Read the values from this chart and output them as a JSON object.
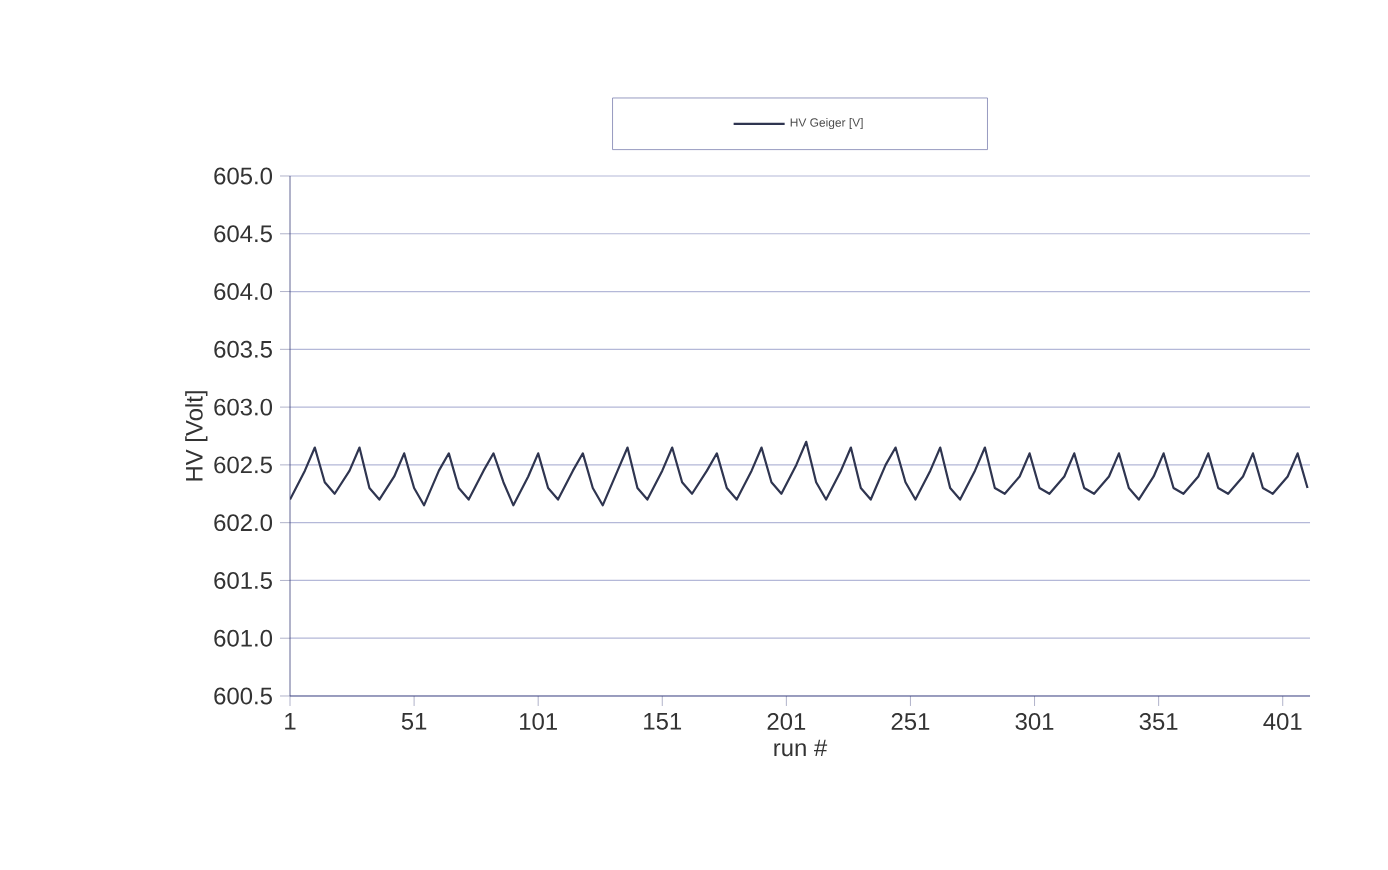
{
  "chart_data": {
    "type": "line",
    "xlabel": "run #",
    "ylabel": "HV [Volt]",
    "xlim": [
      1,
      412
    ],
    "xticks": [
      1,
      51,
      101,
      151,
      201,
      251,
      301,
      351,
      401
    ],
    "ylim": [
      600.5,
      605.0
    ],
    "yticks": [
      {
        "value": 600.5,
        "label": "600.5"
      },
      {
        "value": 601.0,
        "label": "601.0"
      },
      {
        "value": 601.5,
        "label": "601.5"
      },
      {
        "value": 602.0,
        "label": "602.0"
      },
      {
        "value": 602.5,
        "label": "602.5"
      },
      {
        "value": 603.0,
        "label": "603.0"
      },
      {
        "value": 603.5,
        "label": "603.5"
      },
      {
        "value": 604.0,
        "label": "604.0"
      },
      {
        "value": 604.5,
        "label": "604.5"
      },
      {
        "value": 605.0,
        "label": "605.0"
      }
    ],
    "grid": "y",
    "legend": "top",
    "marker": "none",
    "line_style": "solid",
    "series": [
      {
        "name": "HV Geiger [V]",
        "color": "#2f3550",
        "x": [
          1,
          7,
          11,
          15,
          19,
          25,
          29,
          33,
          37,
          43,
          47,
          51,
          55,
          61,
          65,
          69,
          73,
          79,
          83,
          87,
          91,
          97,
          101,
          105,
          109,
          115,
          119,
          123,
          127,
          133,
          137,
          141,
          145,
          151,
          155,
          159,
          163,
          169,
          173,
          177,
          181,
          187,
          191,
          195,
          199,
          205,
          209,
          213,
          217,
          223,
          227,
          231,
          235,
          241,
          245,
          249,
          253,
          259,
          263,
          267,
          271,
          277,
          281,
          285,
          289,
          295,
          299,
          303,
          307,
          313,
          317,
          321,
          325,
          331,
          335,
          339,
          343,
          349,
          353,
          357,
          361,
          367,
          371,
          375,
          379,
          385,
          389,
          393,
          397,
          403,
          407,
          411
        ],
        "values": [
          602.2,
          602.45,
          602.65,
          602.35,
          602.25,
          602.45,
          602.65,
          602.3,
          602.2,
          602.4,
          602.6,
          602.3,
          602.15,
          602.45,
          602.6,
          602.3,
          602.2,
          602.45,
          602.6,
          602.35,
          602.15,
          602.4,
          602.6,
          602.3,
          602.2,
          602.45,
          602.6,
          602.3,
          602.15,
          602.45,
          602.65,
          602.3,
          602.2,
          602.45,
          602.65,
          602.35,
          602.25,
          602.45,
          602.6,
          602.3,
          602.2,
          602.45,
          602.65,
          602.35,
          602.25,
          602.5,
          602.7,
          602.35,
          602.2,
          602.45,
          602.65,
          602.3,
          602.2,
          602.5,
          602.65,
          602.35,
          602.2,
          602.45,
          602.65,
          602.3,
          602.2,
          602.45,
          602.65,
          602.3,
          602.25,
          602.4,
          602.6,
          602.3,
          602.25,
          602.4,
          602.6,
          602.3,
          602.25,
          602.4,
          602.6,
          602.3,
          602.2,
          602.4,
          602.6,
          602.3,
          602.25,
          602.4,
          602.6,
          602.3,
          602.25,
          602.4,
          602.6,
          602.3,
          602.25,
          602.4,
          602.6,
          602.3
        ]
      }
    ]
  }
}
